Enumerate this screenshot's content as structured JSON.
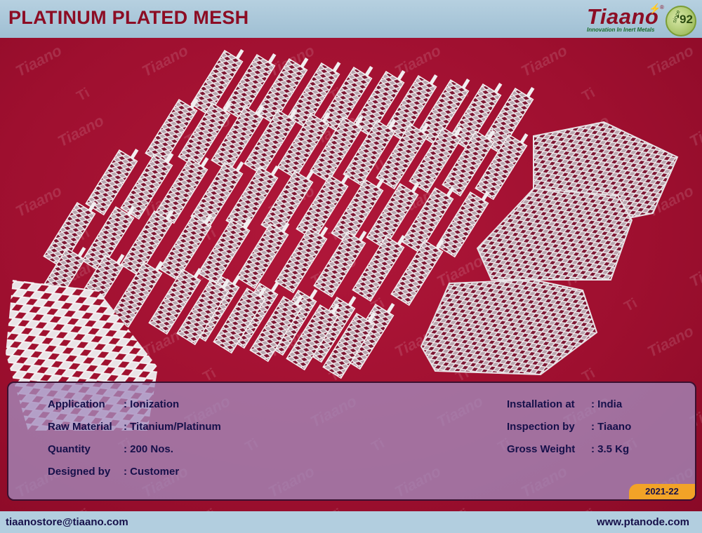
{
  "header": {
    "title": "PLATINUM PLATED MESH",
    "logo": {
      "name": "Tiaano",
      "registered": "®",
      "tagline": "Innovation In Inert Metals",
      "since": "since",
      "year": "'92"
    }
  },
  "watermark": {
    "text": "Tiaano",
    "symbol": "Ti"
  },
  "colors": {
    "title": "#8c0d24",
    "background": "#9e0f2f",
    "panel": "#a48cbe",
    "accent": "#f2a327",
    "text": "#16104a"
  },
  "details": {
    "left": [
      {
        "label": "Application",
        "value": ": Ionization"
      },
      {
        "label": "Raw Material",
        "value": ": Titanium/Platinum"
      },
      {
        "label": "Quantity",
        "value": ": 200 Nos."
      },
      {
        "label": "Designed by",
        "value": ": Customer"
      }
    ],
    "right": [
      {
        "label": "Installation at",
        "value": ": India"
      },
      {
        "label": "Inspection by",
        "value": ": Tiaano"
      },
      {
        "label": "Gross Weight",
        "value": ": 3.5 Kg"
      }
    ]
  },
  "year_tag": "2021-22",
  "footer": {
    "email": "tiaanostore@tiaano.com",
    "website": "www.ptanode.com"
  }
}
